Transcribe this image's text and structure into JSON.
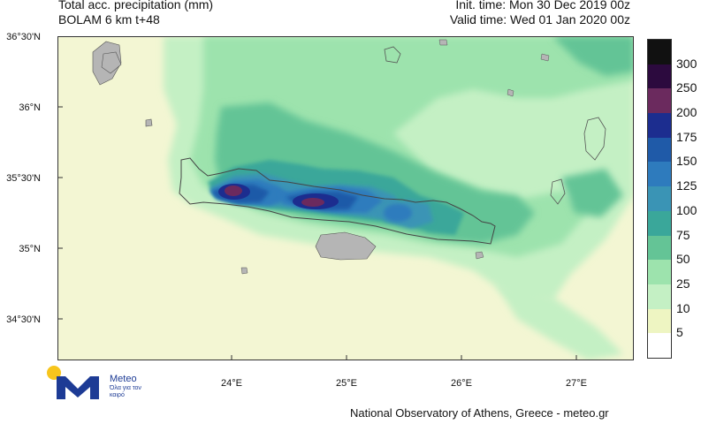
{
  "header": {
    "title": "Total acc. precipitation (mm)",
    "subtitle": "BOLAM 6 km t+48",
    "init_time": "Init. time: Mon 30 Dec 2019 00z",
    "valid_time": "Valid time: Wed 01 Jan 2020 00z"
  },
  "map": {
    "lat_labels": [
      "36°30'N",
      "36°N",
      "35°30'N",
      "35°N",
      "34°30'N"
    ],
    "lon_labels": [
      "24°E",
      "25°E",
      "26°E",
      "27°E"
    ],
    "land_color": "#b5b5b5",
    "sea_color": "#f3f6d3"
  },
  "colorbar": {
    "levels": [
      {
        "label": "300",
        "color": "#111111"
      },
      {
        "label": "250",
        "color": "#2c0a3e"
      },
      {
        "label": "200",
        "color": "#6b2a5e"
      },
      {
        "label": "175",
        "color": "#1c2d8f"
      },
      {
        "label": "150",
        "color": "#1f5aa8"
      },
      {
        "label": "125",
        "color": "#2e7bbd"
      },
      {
        "label": "100",
        "color": "#3a94b5"
      },
      {
        "label": "75",
        "color": "#3aa79a"
      },
      {
        "label": "50",
        "color": "#64c496"
      },
      {
        "label": "25",
        "color": "#9de3ad"
      },
      {
        "label": "10",
        "color": "#c4f0c4"
      },
      {
        "label": "5",
        "color": "#eef5c2"
      },
      {
        "label": "",
        "color": "#ffffff"
      }
    ]
  },
  "logo": {
    "name": "Meteo",
    "tagline": "Όλα για τον καιρό"
  },
  "credit": "National Observatory of Athens, Greece - meteo.gr"
}
